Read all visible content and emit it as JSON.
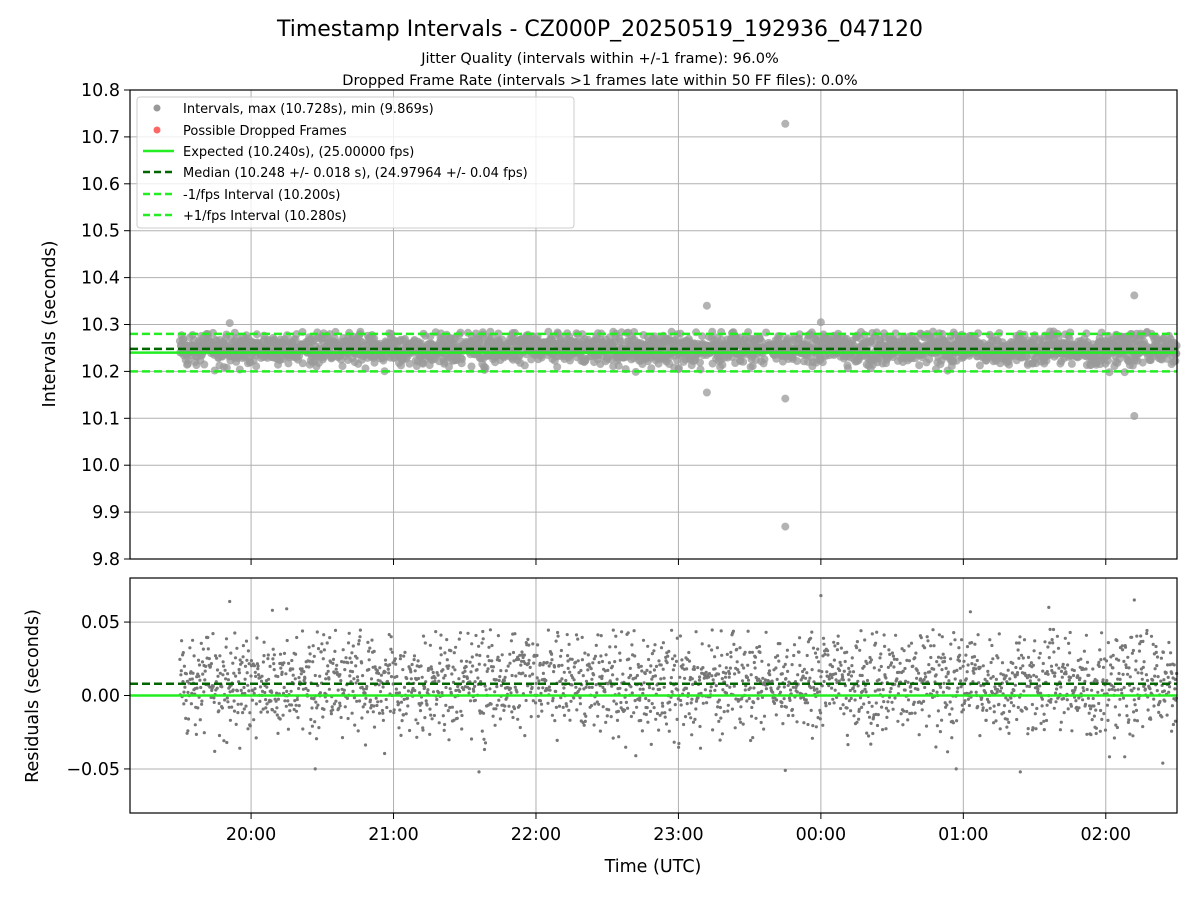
{
  "chart_data": {
    "type": "scatter",
    "title": "Timestamp Intervals - CZ000P_20250519_192936_047120",
    "subtitles": [
      "Jitter Quality (intervals within +/-1 frame): 96.0%",
      "Dropped Frame Rate (intervals >1 frames late within 50 FF files): 0.0%"
    ],
    "xlabel": "Time (UTC)",
    "x_tick_labels": [
      "20:00",
      "21:00",
      "22:00",
      "23:00",
      "00:00",
      "01:00",
      "02:00"
    ],
    "x_ticks_hours": [
      20,
      21,
      22,
      23,
      24,
      25,
      26
    ],
    "xlim_hours": [
      19.15,
      26.5
    ],
    "data_x_range_hours": [
      19.5,
      26.5
    ],
    "n_points": 2450,
    "colors": {
      "intervals": "#999999",
      "dropped": "#ff6666",
      "expected": "#22ee22",
      "median": "#006600",
      "fps_band": "#22ee22",
      "residuals": "#777777",
      "grid": "#b0b0b0"
    },
    "top_panel": {
      "ylabel": "Intervals (seconds)",
      "ylim": [
        9.8,
        10.8
      ],
      "y_ticks": [
        9.8,
        9.9,
        10.0,
        10.1,
        10.2,
        10.3,
        10.4,
        10.5,
        10.6,
        10.7,
        10.8
      ],
      "y_tick_labels": [
        "9.8",
        "9.9",
        "10.0",
        "10.1",
        "10.2",
        "10.3",
        "10.4",
        "10.5",
        "10.6",
        "10.7",
        "10.8"
      ],
      "grid": true,
      "legend_placement": "upper-left",
      "legend": [
        {
          "label": "Intervals, max (10.728s), min (9.869s)",
          "kind": "dot",
          "color": "#999999"
        },
        {
          "label": "Possible Dropped Frames",
          "kind": "dot",
          "color": "#ff6666"
        },
        {
          "label": "Expected (10.240s), (25.00000 fps)",
          "kind": "solid",
          "color": "#22ee22"
        },
        {
          "label": "Median (10.248 +/- 0.018 s), (24.97964 +/- 0.04 fps)",
          "kind": "dashed",
          "color": "#006600"
        },
        {
          "label": "-1/fps Interval (10.200s)",
          "kind": "dashed",
          "color": "#22ee22"
        },
        {
          "label": "+1/fps Interval (10.280s)",
          "kind": "dashed",
          "color": "#22ee22"
        }
      ],
      "expected": 10.24,
      "median": 10.248,
      "minus_1fps": 10.2,
      "plus_1fps": 10.28,
      "bulk_range": [
        10.19,
        10.3
      ],
      "outliers": [
        {
          "x": 23.75,
          "y": 10.728
        },
        {
          "x": 23.75,
          "y": 9.869
        },
        {
          "x": 23.2,
          "y": 10.34
        },
        {
          "x": 23.2,
          "y": 10.155
        },
        {
          "x": 23.75,
          "y": 10.142
        },
        {
          "x": 26.2,
          "y": 10.362
        },
        {
          "x": 26.2,
          "y": 10.105
        },
        {
          "x": 24.0,
          "y": 10.305
        },
        {
          "x": 19.85,
          "y": 10.303
        }
      ]
    },
    "bottom_panel": {
      "ylabel": "Residuals (seconds)",
      "ylim": [
        -0.08,
        0.08
      ],
      "y_ticks": [
        -0.05,
        0.0,
        0.05
      ],
      "y_tick_labels": [
        "−0.05",
        "0.00",
        "0.05"
      ],
      "grid": true,
      "zero_line": 0.0,
      "median_line": 0.008,
      "bulk_range": [
        -0.045,
        0.045
      ],
      "outliers": [
        {
          "x": 24.0,
          "y": 0.068
        },
        {
          "x": 26.2,
          "y": 0.065
        },
        {
          "x": 19.85,
          "y": 0.064
        },
        {
          "x": 20.25,
          "y": 0.059
        },
        {
          "x": 20.15,
          "y": 0.058
        },
        {
          "x": 25.05,
          "y": 0.057
        },
        {
          "x": 25.6,
          "y": 0.06
        },
        {
          "x": 23.75,
          "y": -0.051
        },
        {
          "x": 21.6,
          "y": -0.052
        },
        {
          "x": 25.4,
          "y": -0.052
        },
        {
          "x": 20.45,
          "y": -0.05
        },
        {
          "x": 24.95,
          "y": -0.05
        },
        {
          "x": 26.4,
          "y": -0.046
        }
      ]
    }
  }
}
